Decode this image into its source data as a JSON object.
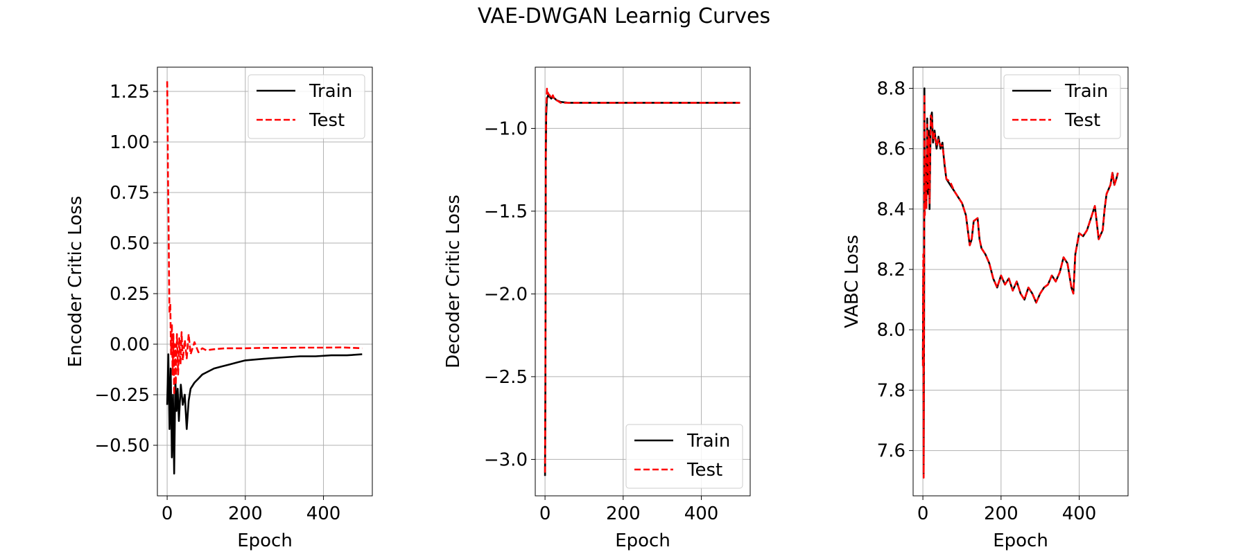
{
  "figure": {
    "title": "VAE-DWGAN Learnig Curves"
  },
  "chart_data": [
    {
      "type": "line",
      "title": "",
      "xlabel": "Epoch",
      "ylabel": "Encoder Critic Loss",
      "xlim": [
        -25,
        525
      ],
      "ylim": [
        -0.75,
        1.37
      ],
      "xticks": [
        0,
        200,
        400
      ],
      "xtick_labels": [
        "0",
        "200",
        "400"
      ],
      "yticks": [
        -0.5,
        -0.25,
        0.0,
        0.25,
        0.5,
        0.75,
        1.0,
        1.25
      ],
      "ytick_labels": [
        "−0.50",
        "−0.25",
        "0.00",
        "0.25",
        "0.50",
        "0.75",
        "1.00",
        "1.25"
      ],
      "grid": true,
      "legend_position": "top-right",
      "series": [
        {
          "name": "Train",
          "color": "#000000",
          "dash": "solid",
          "x": [
            0,
            3,
            6,
            9,
            12,
            15,
            18,
            21,
            24,
            27,
            30,
            35,
            40,
            45,
            50,
            55,
            60,
            70,
            80,
            90,
            100,
            120,
            140,
            160,
            180,
            200,
            230,
            260,
            300,
            340,
            380,
            420,
            460,
            499
          ],
          "y": [
            -0.3,
            -0.05,
            -0.42,
            -0.12,
            -0.56,
            -0.25,
            -0.64,
            -0.18,
            -0.33,
            -0.22,
            -0.38,
            -0.2,
            -0.3,
            -0.25,
            -0.42,
            -0.28,
            -0.22,
            -0.19,
            -0.17,
            -0.15,
            -0.14,
            -0.12,
            -0.11,
            -0.1,
            -0.09,
            -0.08,
            -0.075,
            -0.07,
            -0.065,
            -0.06,
            -0.06,
            -0.055,
            -0.055,
            -0.05
          ]
        },
        {
          "name": "Test",
          "color": "#ff0000",
          "dash": "dashed",
          "x": [
            0,
            1,
            2,
            3,
            4,
            5,
            6,
            8,
            10,
            12,
            14,
            16,
            18,
            20,
            22,
            25,
            28,
            31,
            34,
            37,
            40,
            45,
            50,
            55,
            60,
            70,
            80,
            90,
            100,
            120,
            150,
            200,
            250,
            300,
            350,
            400,
            450,
            499
          ],
          "y": [
            1.3,
            1.1,
            0.85,
            0.7,
            0.53,
            0.3,
            0.15,
            0.2,
            -0.05,
            0.1,
            -0.15,
            0.05,
            -0.25,
            0.0,
            -0.2,
            0.05,
            -0.15,
            0.03,
            -0.1,
            0.06,
            -0.08,
            0.02,
            -0.07,
            0.05,
            -0.05,
            0.01,
            -0.04,
            -0.02,
            -0.03,
            -0.025,
            -0.02,
            -0.02,
            -0.018,
            -0.018,
            -0.017,
            -0.017,
            -0.016,
            -0.02
          ]
        }
      ]
    },
    {
      "type": "line",
      "title": "",
      "xlabel": "Epoch",
      "ylabel": "Decoder Critic Loss",
      "xlim": [
        -25,
        525
      ],
      "ylim": [
        -3.22,
        -0.63
      ],
      "xticks": [
        0,
        200,
        400
      ],
      "xtick_labels": [
        "0",
        "200",
        "400"
      ],
      "yticks": [
        -3.0,
        -2.5,
        -2.0,
        -1.5,
        -1.0
      ],
      "ytick_labels": [
        "−3.0",
        "−2.5",
        "−2.0",
        "−1.5",
        "−1.0"
      ],
      "grid": true,
      "legend_position": "bottom-right",
      "series": [
        {
          "name": "Train",
          "color": "#000000",
          "dash": "solid",
          "x": [
            0,
            1,
            2,
            3,
            5,
            8,
            12,
            16,
            20,
            25,
            30,
            40,
            60,
            100,
            200,
            300,
            400,
            499
          ],
          "y": [
            -3.1,
            -2.5,
            -1.2,
            -0.92,
            -0.82,
            -0.8,
            -0.81,
            -0.82,
            -0.81,
            -0.82,
            -0.83,
            -0.84,
            -0.845,
            -0.845,
            -0.845,
            -0.845,
            -0.845,
            -0.845
          ]
        },
        {
          "name": "Test",
          "color": "#ff0000",
          "dash": "dashed",
          "x": [
            0,
            1,
            2,
            3,
            5,
            8,
            12,
            16,
            20,
            25,
            30,
            40,
            60,
            100,
            200,
            300,
            400,
            499
          ],
          "y": [
            -3.08,
            -2.4,
            -1.1,
            -0.88,
            -0.76,
            -0.79,
            -0.8,
            -0.82,
            -0.8,
            -0.83,
            -0.83,
            -0.845,
            -0.845,
            -0.845,
            -0.845,
            -0.845,
            -0.845,
            -0.845
          ]
        }
      ]
    },
    {
      "type": "line",
      "title": "",
      "xlabel": "Epoch",
      "ylabel": "VABC Loss",
      "xlim": [
        -25,
        525
      ],
      "ylim": [
        7.45,
        8.87
      ],
      "xticks": [
        0,
        200,
        400
      ],
      "xtick_labels": [
        "0",
        "200",
        "400"
      ],
      "yticks": [
        7.6,
        7.8,
        8.0,
        8.2,
        8.4,
        8.6,
        8.8
      ],
      "ytick_labels": [
        "7.6",
        "7.8",
        "8.0",
        "8.2",
        "8.4",
        "8.6",
        "8.8"
      ],
      "grid": true,
      "legend_position": "top-right",
      "series": [
        {
          "name": "Train",
          "color": "#000000",
          "dash": "solid",
          "x": [
            0,
            1,
            2,
            3,
            4,
            5,
            7,
            9,
            11,
            13,
            15,
            17,
            20,
            23,
            26,
            30,
            35,
            40,
            45,
            50,
            55,
            60,
            70,
            80,
            90,
            100,
            110,
            115,
            120,
            125,
            130,
            140,
            145,
            150,
            160,
            170,
            180,
            190,
            200,
            210,
            220,
            230,
            240,
            250,
            260,
            270,
            280,
            290,
            300,
            310,
            320,
            330,
            340,
            350,
            360,
            370,
            380,
            385,
            390,
            400,
            410,
            420,
            430,
            440,
            450,
            460,
            465,
            470,
            480,
            485,
            490,
            495,
            499
          ],
          "y": [
            7.9,
            8.2,
            7.52,
            8.0,
            8.8,
            8.4,
            8.55,
            8.42,
            8.7,
            8.45,
            8.66,
            8.4,
            8.7,
            8.72,
            8.62,
            8.66,
            8.6,
            8.64,
            8.6,
            8.62,
            8.55,
            8.5,
            8.48,
            8.46,
            8.44,
            8.42,
            8.38,
            8.33,
            8.28,
            8.3,
            8.36,
            8.37,
            8.3,
            8.27,
            8.25,
            8.22,
            8.17,
            8.14,
            8.18,
            8.15,
            8.17,
            8.13,
            8.16,
            8.12,
            8.1,
            8.14,
            8.12,
            8.09,
            8.12,
            8.14,
            8.15,
            8.18,
            8.16,
            8.19,
            8.24,
            8.22,
            8.14,
            8.12,
            8.25,
            8.32,
            8.31,
            8.33,
            8.37,
            8.41,
            8.3,
            8.33,
            8.4,
            8.45,
            8.48,
            8.52,
            8.48,
            8.5,
            8.52
          ]
        },
        {
          "name": "Test",
          "color": "#ff0000",
          "dash": "dashed",
          "x": [
            0,
            1,
            2,
            3,
            4,
            5,
            7,
            9,
            11,
            13,
            15,
            17,
            20,
            23,
            26,
            30,
            35,
            40,
            45,
            50,
            55,
            60,
            70,
            80,
            90,
            100,
            110,
            115,
            120,
            125,
            130,
            140,
            145,
            150,
            160,
            170,
            180,
            190,
            200,
            210,
            220,
            230,
            240,
            250,
            260,
            270,
            280,
            290,
            300,
            310,
            320,
            330,
            340,
            350,
            360,
            370,
            380,
            385,
            390,
            400,
            410,
            420,
            430,
            440,
            450,
            460,
            465,
            470,
            480,
            485,
            490,
            495,
            499
          ],
          "y": [
            7.88,
            8.25,
            7.51,
            8.05,
            8.78,
            8.38,
            8.58,
            8.4,
            8.68,
            8.47,
            8.64,
            8.42,
            8.71,
            8.7,
            8.63,
            8.65,
            8.61,
            8.63,
            8.61,
            8.61,
            8.56,
            8.5,
            8.49,
            8.46,
            8.44,
            8.42,
            8.38,
            8.33,
            8.28,
            8.3,
            8.36,
            8.37,
            8.3,
            8.27,
            8.25,
            8.22,
            8.17,
            8.14,
            8.18,
            8.15,
            8.17,
            8.13,
            8.16,
            8.12,
            8.1,
            8.14,
            8.12,
            8.09,
            8.12,
            8.14,
            8.15,
            8.18,
            8.16,
            8.19,
            8.24,
            8.22,
            8.14,
            8.12,
            8.25,
            8.32,
            8.31,
            8.33,
            8.37,
            8.41,
            8.3,
            8.33,
            8.4,
            8.45,
            8.48,
            8.52,
            8.48,
            8.5,
            8.52
          ]
        }
      ]
    }
  ]
}
